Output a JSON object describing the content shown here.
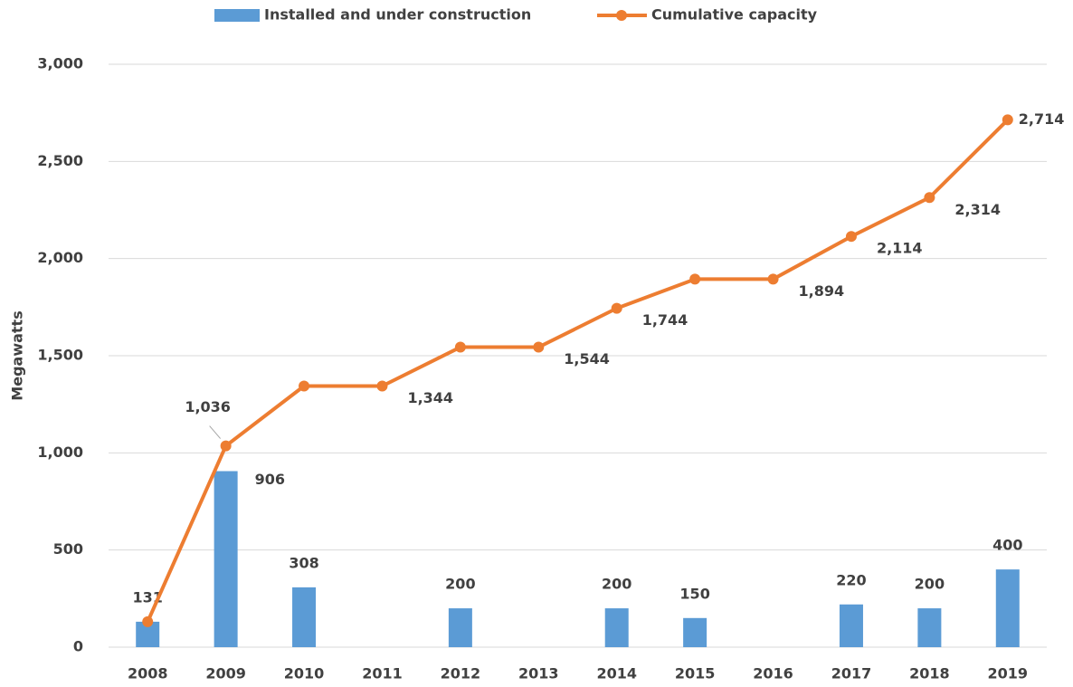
{
  "chart_data": {
    "type": "bar-line",
    "y_axis_label": "Megawatts",
    "categories": [
      "2008",
      "2009",
      "2010",
      "2011",
      "2012",
      "2013",
      "2014",
      "2015",
      "2016",
      "2017",
      "2018",
      "2019"
    ],
    "series": [
      {
        "name": "Installed and under construction",
        "type": "bar",
        "color": "#5b9bd5",
        "values": [
          131,
          906,
          308,
          null,
          200,
          null,
          200,
          150,
          null,
          220,
          200,
          400
        ]
      },
      {
        "name": "Cumulative capacity",
        "type": "line",
        "color": "#ed7d31",
        "values": [
          131,
          1036,
          1344,
          1344,
          1544,
          1544,
          1744,
          1894,
          1894,
          2114,
          2314,
          2714
        ],
        "value_labels": [
          null,
          "1,036",
          null,
          "1,344",
          null,
          "1,544",
          "1,744",
          null,
          "1,894",
          "2,114",
          "2,314",
          "2,714"
        ]
      }
    ],
    "ylim": [
      0,
      3000
    ],
    "yticks": [
      0,
      500,
      {
        "value": 1000,
        "label": "1,000"
      },
      {
        "value": 1500,
        "label": "1,500"
      },
      {
        "value": 2000,
        "label": "2,000"
      },
      {
        "value": 2500,
        "label": "2,500"
      },
      {
        "value": 3000,
        "label": "3,000"
      }
    ],
    "grid": true,
    "legend": "top"
  }
}
